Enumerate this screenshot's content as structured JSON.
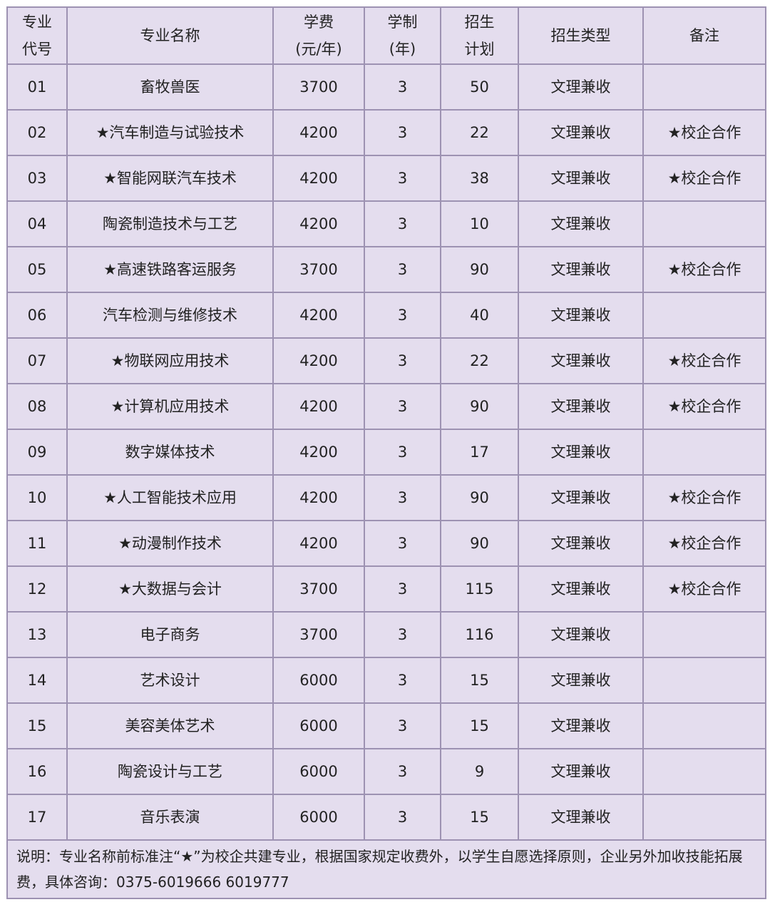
{
  "headers": [
    {
      "l1": "专业",
      "l2": "代号"
    },
    {
      "l1": "专业名称",
      "l2": ""
    },
    {
      "l1": "学费",
      "l2": "(元/年)"
    },
    {
      "l1": "学制",
      "l2": "(年)"
    },
    {
      "l1": "招生",
      "l2": "计划"
    },
    {
      "l1": "招生类型",
      "l2": ""
    },
    {
      "l1": "备注",
      "l2": ""
    }
  ],
  "rows": [
    [
      "01",
      "畜牧兽医",
      "3700",
      "3",
      "50",
      "文理兼收",
      ""
    ],
    [
      "02",
      "★汽车制造与试验技术",
      "4200",
      "3",
      "22",
      "文理兼收",
      "★校企合作"
    ],
    [
      "03",
      "★智能网联汽车技术",
      "4200",
      "3",
      "38",
      "文理兼收",
      "★校企合作"
    ],
    [
      "04",
      "陶瓷制造技术与工艺",
      "4200",
      "3",
      "10",
      "文理兼收",
      ""
    ],
    [
      "05",
      "★高速铁路客运服务",
      "3700",
      "3",
      "90",
      "文理兼收",
      "★校企合作"
    ],
    [
      "06",
      "汽车检测与维修技术",
      "4200",
      "3",
      "40",
      "文理兼收",
      ""
    ],
    [
      "07",
      "★物联网应用技术",
      "4200",
      "3",
      "22",
      "文理兼收",
      "★校企合作"
    ],
    [
      "08",
      "★计算机应用技术",
      "4200",
      "3",
      "90",
      "文理兼收",
      "★校企合作"
    ],
    [
      "09",
      "数字媒体技术",
      "4200",
      "3",
      "17",
      "文理兼收",
      ""
    ],
    [
      "10",
      "★人工智能技术应用",
      "4200",
      "3",
      "90",
      "文理兼收",
      "★校企合作"
    ],
    [
      "11",
      "★动漫制作技术",
      "4200",
      "3",
      "90",
      "文理兼收",
      "★校企合作"
    ],
    [
      "12",
      "★大数据与会计",
      "3700",
      "3",
      "115",
      "文理兼收",
      "★校企合作"
    ],
    [
      "13",
      "电子商务",
      "3700",
      "3",
      "116",
      "文理兼收",
      ""
    ],
    [
      "14",
      "艺术设计",
      "6000",
      "3",
      "15",
      "文理兼收",
      ""
    ],
    [
      "15",
      "美容美体艺术",
      "6000",
      "3",
      "15",
      "文理兼收",
      ""
    ],
    [
      "16",
      "陶瓷设计与工艺",
      "6000",
      "3",
      "9",
      "文理兼收",
      ""
    ],
    [
      "17",
      "音乐表演",
      "6000",
      "3",
      "15",
      "文理兼收",
      ""
    ]
  ],
  "note": "说明：专业名称前标准注“★”为校企共建专业，根据国家规定收费外，以学生自愿选择原则，企业另外加收技能拓展费，具体咨询：0375-6019666 6019777",
  "colors": {
    "fill": "#e4ddee",
    "border": "#9d92b2"
  }
}
